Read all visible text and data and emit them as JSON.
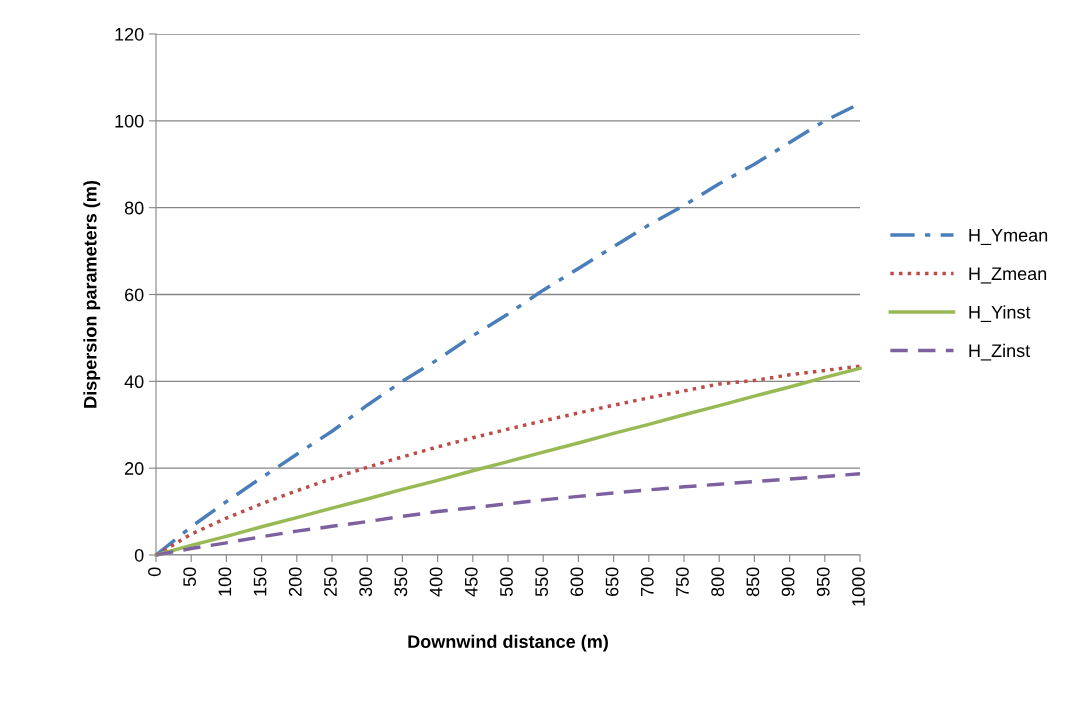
{
  "chart_data": {
    "type": "line",
    "xlabel": "Downwind distance (m)",
    "ylabel": "Dispersion parameters (m)",
    "xlim": [
      0,
      1000
    ],
    "xticks": [
      0,
      50,
      100,
      150,
      200,
      250,
      300,
      350,
      400,
      450,
      500,
      550,
      600,
      650,
      700,
      750,
      800,
      850,
      900,
      950,
      1000
    ],
    "ylim": [
      0,
      120
    ],
    "yticks": [
      0,
      20,
      40,
      60,
      80,
      100,
      120
    ],
    "grid": "y",
    "legend": "right",
    "marker": "none",
    "x": [
      0,
      50,
      100,
      150,
      200,
      250,
      300,
      350,
      400,
      450,
      500,
      550,
      600,
      650,
      700,
      750,
      800,
      850,
      900,
      950,
      1000
    ],
    "series": [
      {
        "name": "H_Ymean",
        "color": "#4a7ebb",
        "line_style": "dashdot",
        "values": [
          0,
          6.5,
          12.3,
          17.8,
          23.2,
          28.5,
          34.5,
          40,
          45,
          50.5,
          55.5,
          61,
          66,
          71,
          76,
          80.5,
          85.5,
          90,
          95,
          100,
          104
        ]
      },
      {
        "name": "H_Zmean",
        "color": "#be4b48",
        "line_style": "dotted",
        "values": [
          0,
          4.8,
          8.5,
          11.8,
          14.8,
          17.6,
          20.2,
          22.6,
          24.9,
          27,
          29,
          30.9,
          32.7,
          34.5,
          36.2,
          37.8,
          39.4,
          40.2,
          41.5,
          42.5,
          43.5
        ]
      },
      {
        "name": "H_Yinst",
        "color": "#98b954",
        "line_style": "solid",
        "values": [
          0,
          2.2,
          4.3,
          6.5,
          8.6,
          10.8,
          12.9,
          15.1,
          17.2,
          19.4,
          21.5,
          23.7,
          25.8,
          28,
          30.1,
          32.3,
          34.4,
          36.6,
          38.7,
          40.9,
          43
        ]
      },
      {
        "name": "H_Zinst",
        "color": "#7d60a0",
        "line_style": "dashed",
        "values": [
          0,
          1.5,
          2.8,
          4.2,
          5.5,
          6.6,
          7.7,
          8.9,
          10,
          10.9,
          11.8,
          12.7,
          13.5,
          14.3,
          15,
          15.7,
          16.3,
          16.9,
          17.5,
          18.1,
          18.7
        ]
      }
    ]
  }
}
